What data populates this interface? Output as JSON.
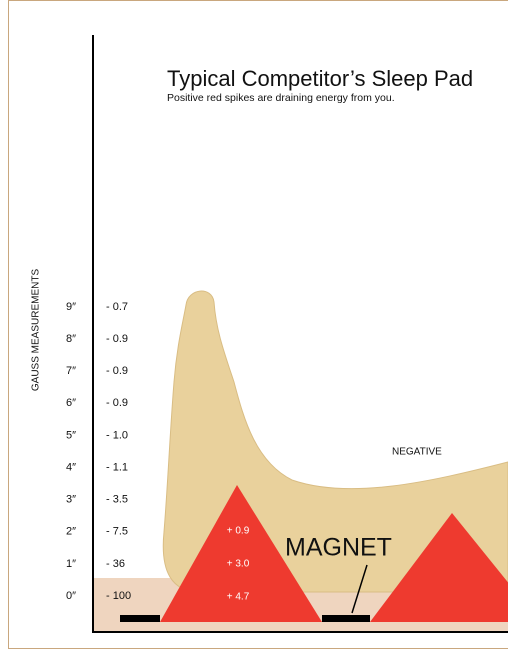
{
  "title": "Typical Competitor’s Sleep Pad",
  "subtitle": "Positive red spikes are draining energy from you.",
  "axis_label": "GAUSS MEASUREMENTS",
  "rows": [
    {
      "height": "9″",
      "gauss": "- 0.7"
    },
    {
      "height": "8″",
      "gauss": "- 0.9"
    },
    {
      "height": "7″",
      "gauss": "- 0.9"
    },
    {
      "height": "6″",
      "gauss": "- 0.9"
    },
    {
      "height": "5″",
      "gauss": "- 1.0"
    },
    {
      "height": "4″",
      "gauss": "- 1.1"
    },
    {
      "height": "3″",
      "gauss": "- 3.5"
    },
    {
      "height": "2″",
      "gauss": "- 7.5"
    },
    {
      "height": "1″",
      "gauss": "- 36"
    },
    {
      "height": "0″",
      "gauss": "- 100"
    }
  ],
  "spike_labels": [
    "+ 0.9",
    "+ 3.0",
    "+ 4.7"
  ],
  "magnet_label": "MAGNET",
  "negative_label": "NEGATIVE"
}
